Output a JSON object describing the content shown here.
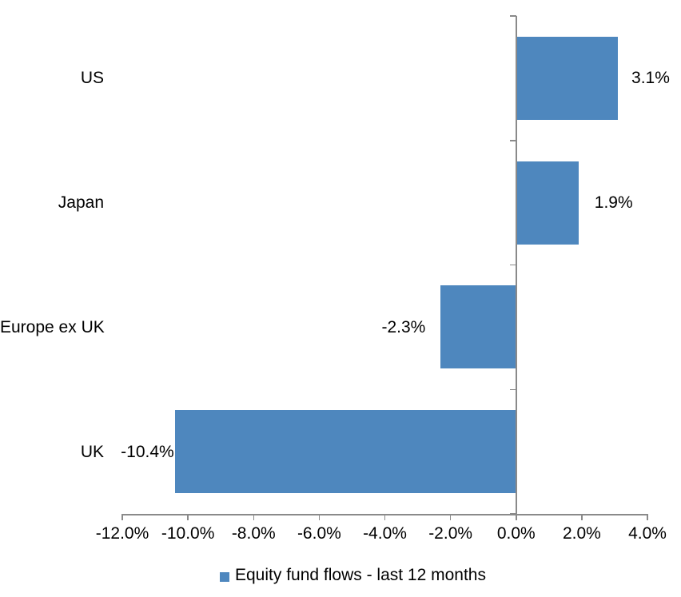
{
  "chart_data": {
    "type": "bar",
    "orientation": "horizontal",
    "title": "",
    "categories": [
      "US",
      "Japan",
      "Europe ex UK",
      "UK"
    ],
    "series": [
      {
        "name": "Equity fund flows - last 12 months",
        "values": [
          3.1,
          1.9,
          -2.3,
          -10.4
        ],
        "data_labels": [
          "3.1%",
          "1.9%",
          "-2.3%",
          "-10.4%"
        ],
        "color": "#4e87be"
      }
    ],
    "xlim": [
      -12,
      4
    ],
    "x_ticks": [
      {
        "value": -12,
        "label": "-12.0%"
      },
      {
        "value": -10,
        "label": "-10.0%"
      },
      {
        "value": -8,
        "label": "-8.0%"
      },
      {
        "value": -6,
        "label": "-6.0%"
      },
      {
        "value": -4,
        "label": "-4.0%"
      },
      {
        "value": -2,
        "label": "-2.0%"
      },
      {
        "value": 0,
        "label": "0.0%"
      },
      {
        "value": 2,
        "label": "2.0%"
      },
      {
        "value": 4,
        "label": "4.0%"
      }
    ],
    "grid": false,
    "legend_position": "bottom",
    "axis_color": "#8a8a8a",
    "text_color": "#000000",
    "background": "#ffffff"
  }
}
